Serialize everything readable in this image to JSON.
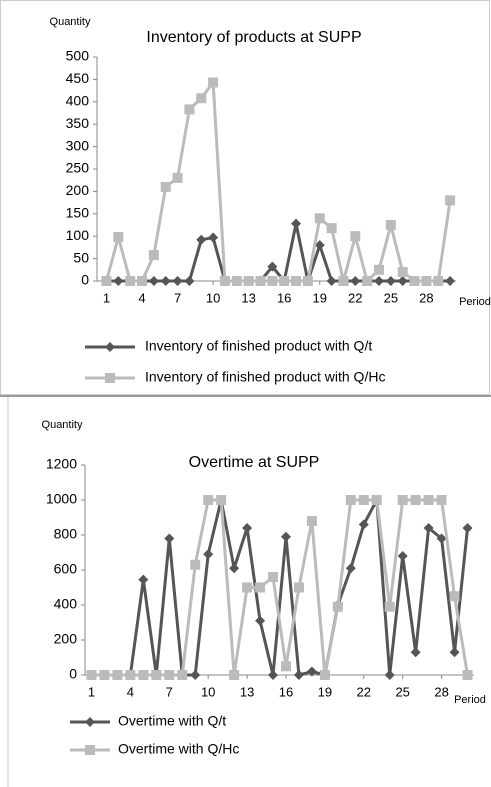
{
  "chart_data": [
    {
      "type": "line",
      "title": "Inventory of products at SUPP",
      "y_label": "Quantity",
      "x_label": "Period",
      "x": [
        1,
        2,
        3,
        4,
        5,
        6,
        7,
        8,
        9,
        10,
        11,
        12,
        13,
        14,
        15,
        16,
        17,
        18,
        19,
        20,
        21,
        22,
        23,
        24,
        25,
        26,
        27,
        28,
        29,
        30
      ],
      "xlim": [
        0.2,
        30.5
      ],
      "xticks": [
        1,
        4,
        7,
        10,
        13,
        16,
        19,
        22,
        25,
        28
      ],
      "ylim": [
        0,
        500
      ],
      "yticks": [
        0,
        50,
        100,
        150,
        200,
        250,
        300,
        350,
        400,
        450,
        500
      ],
      "series": [
        {
          "name": "Inventory of finished product with Q/t",
          "color": "#555555",
          "marker": "diamond",
          "values": [
            0,
            0,
            0,
            0,
            0,
            0,
            0,
            0,
            92,
            97,
            0,
            0,
            0,
            0,
            32,
            0,
            128,
            0,
            80,
            0,
            0,
            0,
            0,
            0,
            0,
            0,
            0,
            0,
            0,
            0
          ]
        },
        {
          "name": "Inventory of finished product with Q/Hc",
          "color": "#bbbbbb",
          "marker": "square",
          "values": [
            0,
            98,
            0,
            0,
            58,
            210,
            230,
            383,
            408,
            443,
            0,
            0,
            0,
            0,
            0,
            0,
            0,
            0,
            140,
            118,
            0,
            100,
            0,
            25,
            125,
            20,
            0,
            0,
            0,
            180
          ]
        }
      ]
    },
    {
      "type": "line",
      "title": "Overtime at SUPP",
      "y_label": "Quantity",
      "x_label": "Period",
      "x": [
        1,
        2,
        3,
        4,
        5,
        6,
        7,
        8,
        9,
        10,
        11,
        12,
        13,
        14,
        15,
        16,
        17,
        18,
        19,
        20,
        21,
        22,
        23,
        24,
        25,
        26,
        27,
        28,
        29,
        30
      ],
      "xlim": [
        0.5,
        30.5
      ],
      "xticks": [
        1,
        4,
        7,
        10,
        13,
        16,
        19,
        22,
        25,
        28
      ],
      "ylim": [
        0,
        1200
      ],
      "yticks": [
        0,
        200,
        400,
        600,
        800,
        1000,
        1200
      ],
      "series": [
        {
          "name": "Overtime with Q/t",
          "color": "#555555",
          "marker": "diamond",
          "values": [
            0,
            0,
            0,
            0,
            545,
            0,
            780,
            0,
            0,
            690,
            1000,
            610,
            840,
            310,
            0,
            790,
            0,
            20,
            0,
            400,
            610,
            860,
            1000,
            0,
            680,
            130,
            840,
            780,
            130,
            840
          ]
        },
        {
          "name": "Overtime with Q/Hc",
          "color": "#bbbbbb",
          "marker": "square",
          "values": [
            0,
            0,
            0,
            0,
            0,
            0,
            0,
            0,
            630,
            1000,
            1000,
            0,
            500,
            500,
            560,
            50,
            500,
            880,
            0,
            390,
            1000,
            1000,
            1000,
            390,
            1000,
            1000,
            1000,
            1000,
            450,
            0
          ]
        }
      ]
    }
  ]
}
